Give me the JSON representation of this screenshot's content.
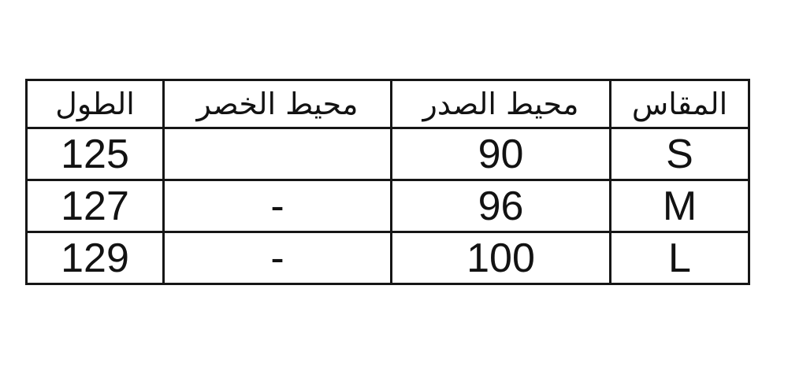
{
  "colors": {
    "background": "#ffffff",
    "border": "#161616",
    "text": "#121212"
  },
  "chart_data": {
    "type": "table",
    "title": "",
    "direction": "rtl",
    "columns": [
      "المقاس",
      "محيط الصدر",
      "محيط الخصر",
      "الطول"
    ],
    "rows": [
      [
        "S",
        "90",
        "",
        "125"
      ],
      [
        "M",
        "96",
        "-",
        "127"
      ],
      [
        "L",
        "100",
        "-",
        "129"
      ]
    ]
  },
  "table": {
    "headers": {
      "size": "المقاس",
      "chest": "محيط الصدر",
      "waist": "محيط الخصر",
      "length": "الطول"
    },
    "rows": [
      {
        "size": "S",
        "chest": "90",
        "waist": "",
        "length": "125"
      },
      {
        "size": "M",
        "chest": "96",
        "waist": "-",
        "length": "127"
      },
      {
        "size": "L",
        "chest": "100",
        "waist": "-",
        "length": "129"
      }
    ]
  }
}
